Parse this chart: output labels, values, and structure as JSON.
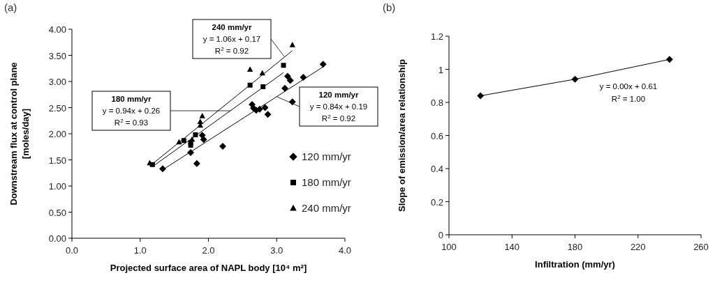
{
  "chart_data": [
    {
      "type": "scatter",
      "title": "(a)",
      "xlabel": "Projected surface area of NAPL body    [10⁴ m²]",
      "ylabel": "Downstream flux at control plane\n[moles/day]",
      "xlim": [
        0,
        4
      ],
      "xticks": [
        {
          "value": 0,
          "label": "0.0"
        },
        {
          "value": 1,
          "label": "1.0"
        },
        {
          "value": 2,
          "label": "2.0"
        },
        {
          "value": 3,
          "label": "3.0"
        },
        {
          "value": 4,
          "label": "4.0"
        }
      ],
      "ylim": [
        0,
        4
      ],
      "yticks": [
        {
          "value": 0,
          "label": "0.00"
        },
        {
          "value": 0.5,
          "label": "0.50"
        },
        {
          "value": 1,
          "label": "1.00"
        },
        {
          "value": 1.5,
          "label": "1.50"
        },
        {
          "value": 2,
          "label": "2.00"
        },
        {
          "value": 2.5,
          "label": "2.50"
        },
        {
          "value": 3,
          "label": "3.00"
        },
        {
          "value": 3.5,
          "label": "3.50"
        },
        {
          "value": 4,
          "label": "4.00"
        }
      ],
      "grid": false,
      "legend": "right",
      "series": [
        {
          "name": "120 mm/yr",
          "type": "scatter",
          "marker": "diamond",
          "color": "#000000",
          "x": [
            1.33,
            1.74,
            1.83,
            1.91,
            1.93,
            2.21,
            2.64,
            2.66,
            2.7,
            2.75,
            2.83,
            2.87,
            3.12,
            3.16,
            3.2,
            3.23,
            3.39,
            3.68
          ],
          "values": [
            1.33,
            1.64,
            1.43,
            1.97,
            1.89,
            1.76,
            2.56,
            2.49,
            2.45,
            2.47,
            2.5,
            2.37,
            2.87,
            3.1,
            3.02,
            2.61,
            3.08,
            3.33
          ]
        },
        {
          "name": "180 mm/yr",
          "type": "scatter",
          "marker": "square",
          "color": "#000000",
          "x": [
            1.18,
            1.64,
            1.74,
            1.74,
            1.81,
            2.61,
            2.8,
            3.1
          ],
          "values": [
            1.41,
            1.87,
            1.78,
            1.83,
            1.98,
            2.93,
            2.9,
            3.31
          ]
        },
        {
          "name": "240 mm/yr",
          "type": "scatter",
          "marker": "triangle",
          "color": "#000000",
          "x": [
            1.14,
            1.57,
            1.76,
            1.88,
            1.88,
            1.91,
            2.61,
            2.79,
            3.23
          ],
          "values": [
            1.44,
            1.84,
            1.89,
            2.16,
            2.23,
            2.34,
            3.23,
            3.16,
            3.7
          ]
        },
        {
          "type": "line",
          "marker": "none",
          "color": "#000000",
          "x": [
            1.33,
            3.68
          ],
          "values": [
            1.31,
            3.28
          ]
        },
        {
          "type": "line",
          "marker": "none",
          "color": "#000000",
          "x": [
            1.18,
            3.1
          ],
          "values": [
            1.37,
            3.17
          ]
        },
        {
          "type": "line",
          "marker": "none",
          "color": "#000000",
          "x": [
            1.14,
            3.23
          ],
          "values": [
            1.38,
            3.59
          ]
        }
      ],
      "annotations": [
        {
          "text": "240 mm/yr\ny = 1.06x + 0.17\nR$^{2}$ = 0.92",
          "x": 3.11,
          "y": 3.48
        },
        {
          "text": "180 mm/yr\ny = 0.94x + 0.26\nR$^{2}$ = 0.93",
          "x": 2.32,
          "y": 2.44
        },
        {
          "text": "120 mm/yr\ny = 0.84x + 0.19\nR$^{2}$ = 0.92",
          "x": 3.0,
          "y": 2.71
        }
      ]
    },
    {
      "type": "line",
      "title": "(b)",
      "xlabel": "Infiltration (mm/yr)",
      "ylabel": "Slope of emission/area relationship",
      "xlim": [
        100,
        260
      ],
      "xticks": [
        100,
        140,
        180,
        220,
        260
      ],
      "ylim": [
        0,
        1.2
      ],
      "yticks": [
        0,
        0.2,
        0.4,
        0.6,
        0.8,
        1,
        1.2
      ],
      "grid": false,
      "marker": "diamond",
      "line_style": "solid",
      "series": [
        {
          "color": "#000000",
          "x": [
            120,
            180,
            240
          ],
          "values": [
            0.84,
            0.94,
            1.06
          ]
        }
      ],
      "annotations": [
        "y = 0.00x + 0.61\nR$^{2}$ = 1.00"
      ]
    }
  ]
}
